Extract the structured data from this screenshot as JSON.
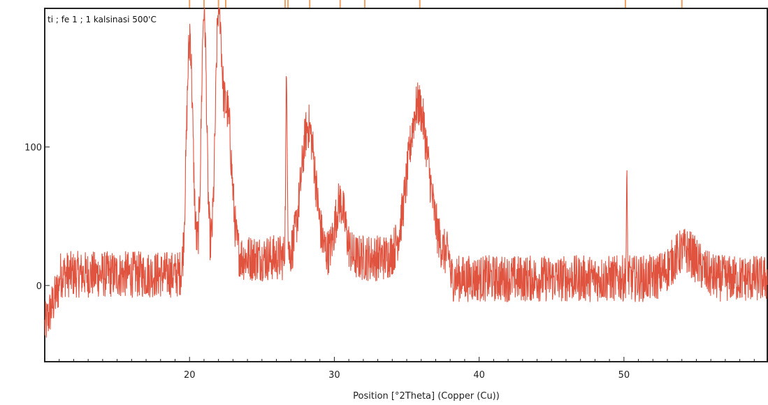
{
  "chart_data": {
    "type": "line",
    "title": "ti ; fe 1 ; 1 kalsinasi 500'C",
    "xlabel": "Position [°2Theta] (Copper (Cu))",
    "ylabel": "",
    "xlim": [
      10.0,
      59.9
    ],
    "ylim": [
      -55,
      200
    ],
    "xticks": [
      20,
      30,
      40,
      50
    ],
    "yticks": [
      0,
      100
    ],
    "grid": false,
    "series_color": "#e0533f",
    "reference_marker_color": "#f0a060",
    "reference_markers": [
      20.0,
      21.0,
      22.0,
      22.5,
      26.6,
      26.8,
      28.3,
      30.4,
      32.1,
      35.9,
      50.1,
      54.0
    ],
    "background_level": 5,
    "peaks": [
      {
        "x": 20.0,
        "y": 185,
        "w": 0.3
      },
      {
        "x": 21.0,
        "y": 200,
        "w": 0.25
      },
      {
        "x": 22.0,
        "y": 185,
        "w": 0.3
      },
      {
        "x": 22.6,
        "y": 125,
        "w": 0.45
      },
      {
        "x": 26.7,
        "y": 145,
        "w": 0.08
      },
      {
        "x": 28.2,
        "y": 115,
        "w": 0.7
      },
      {
        "x": 30.4,
        "y": 60,
        "w": 0.5
      },
      {
        "x": 35.8,
        "y": 130,
        "w": 1.0
      },
      {
        "x": 50.2,
        "y": 85,
        "w": 0.05
      },
      {
        "x": 54.2,
        "y": 40,
        "w": 1.2
      }
    ],
    "series": [
      {
        "values_note_free": true
      }
    ]
  }
}
